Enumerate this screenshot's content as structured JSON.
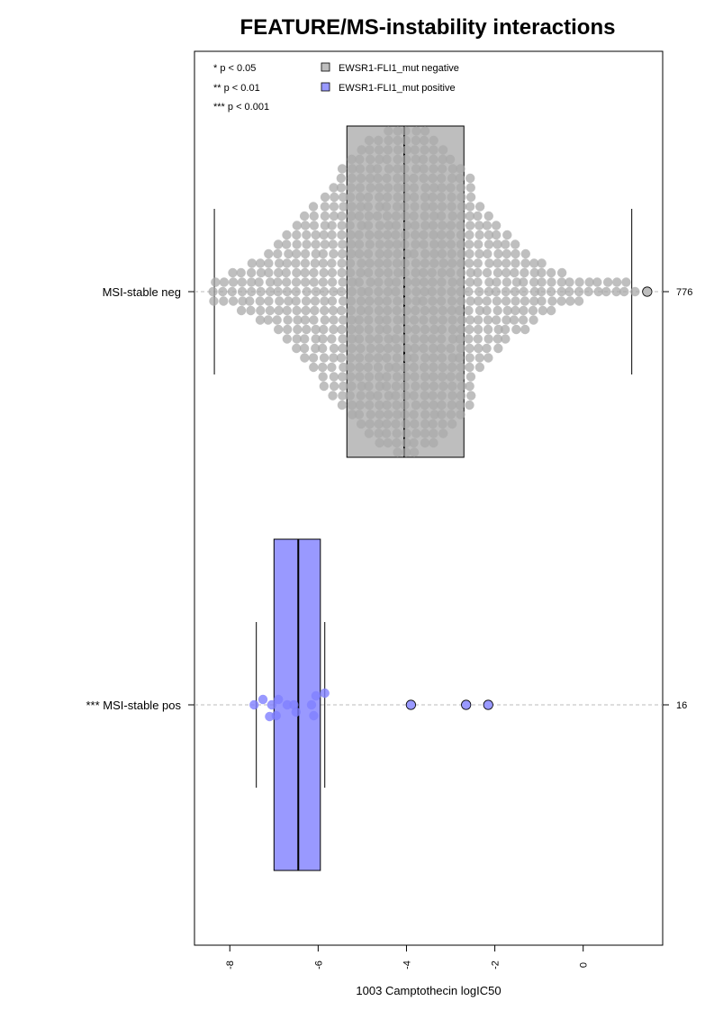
{
  "chart_data": {
    "type": "beeswarm-boxplot",
    "orientation": "horizontal",
    "title": "FEATURE/MS-instability interactions",
    "xlabel": "1003 Camptothecin logIC50",
    "xlim": [
      -8.8,
      1.8
    ],
    "x_ticks": [
      -8,
      -6,
      -4,
      -2,
      0
    ],
    "x_tick_labels": [
      "-8",
      "-6",
      "-4",
      "-2",
      "0"
    ],
    "grid": false,
    "legend_position": "top-left",
    "legend": [
      {
        "label": "EWSR1-FLI1_mut negative",
        "color": "#bebebe"
      },
      {
        "label": "EWSR1-FLI1_mut positive",
        "color": "#9999ff"
      }
    ],
    "significance_key": [
      "* p < 0.05",
      "** p < 0.01",
      "*** p < 0.001"
    ],
    "groups": [
      {
        "label": "MSI-stable neg",
        "n_label": "776",
        "n": 776,
        "color": "#bebebe",
        "point_color": "#aaaaaa",
        "box": {
          "whisker_low": -8.35,
          "q1": -5.35,
          "median": -4.05,
          "q3": -2.7,
          "whisker_high": 1.1
        },
        "outliers": [
          1.45
        ]
      },
      {
        "label": "*** MSI-stable pos",
        "n_label": "16",
        "n": 16,
        "color": "#9999ff",
        "point_color": "#7f7fff",
        "box": {
          "whisker_low": -7.4,
          "q1": -7.0,
          "median": -6.45,
          "q3": -5.95,
          "whisker_high": -5.85
        },
        "points": [
          -7.45,
          -7.25,
          -7.1,
          -7.05,
          -6.95,
          -6.9,
          -6.7,
          -6.55,
          -6.5,
          -6.15,
          -6.1,
          -6.05,
          -5.85
        ],
        "outliers": [
          -3.9,
          -2.65,
          -2.15
        ]
      }
    ]
  }
}
